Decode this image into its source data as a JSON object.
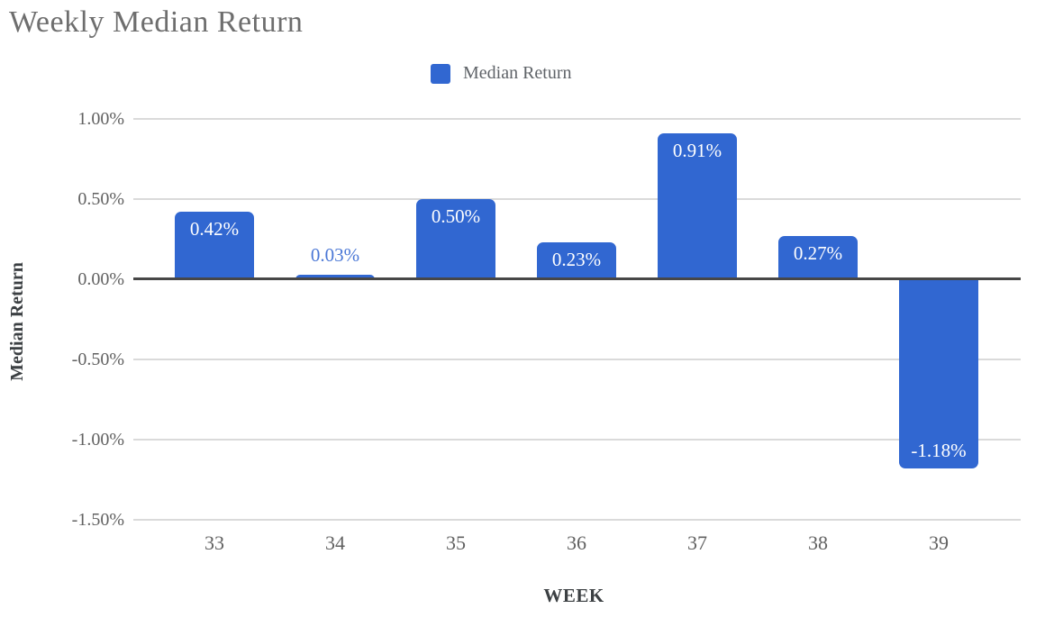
{
  "page": {
    "title": "Weekly Median Return"
  },
  "legend": {
    "label": "Median Return",
    "swatch_color": "#3167d1"
  },
  "chart_data": {
    "type": "bar",
    "title": "Weekly Median Return",
    "xlabel": "WEEK",
    "ylabel": "Median Return",
    "categories": [
      "33",
      "34",
      "35",
      "36",
      "37",
      "38",
      "39"
    ],
    "series": [
      {
        "name": "Median Return",
        "values": [
          0.42,
          0.03,
          0.5,
          0.23,
          0.91,
          0.27,
          -1.18
        ]
      }
    ],
    "value_labels": [
      "0.42%",
      "0.03%",
      "0.50%",
      "0.23%",
      "0.91%",
      "0.27%",
      "-1.18%"
    ],
    "y_ticks": [
      {
        "label": "1.00%",
        "value": 1.0
      },
      {
        "label": "0.50%",
        "value": 0.5
      },
      {
        "label": "0.00%",
        "value": 0.0
      },
      {
        "label": "-0.50%",
        "value": -0.5
      },
      {
        "label": "-1.00%",
        "value": -1.0
      },
      {
        "label": "-1.50%",
        "value": -1.5
      }
    ],
    "ylim": [
      -1.5,
      1.0
    ],
    "grid": true,
    "legend_position": "top",
    "colors": {
      "bar": "#3167d1",
      "label_inside": "#ffffff",
      "label_outside": "#4a77d6",
      "grid": "#dadada",
      "zero_axis": "#474747",
      "title": "#6e6e6e",
      "tick": "#616161",
      "axis_title": "#3c4043"
    }
  }
}
